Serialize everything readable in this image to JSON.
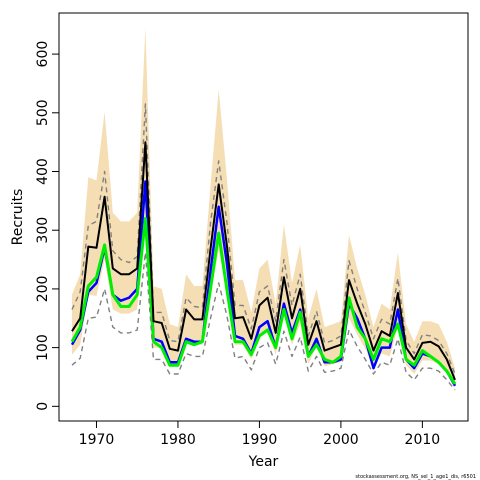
{
  "chart_data": {
    "type": "line",
    "title": "",
    "xlabel": "Year",
    "ylabel": "Recruits",
    "xlim": [
      1965.4,
      2015.6
    ],
    "ylim": [
      -25,
      670
    ],
    "x_ticks": [
      1970,
      1980,
      1990,
      2000,
      2010
    ],
    "y_ticks": [
      0,
      100,
      200,
      300,
      400,
      500,
      600
    ],
    "grid": false,
    "legend": "none",
    "credit": "stockassessment.org, NS_sel_1_age1_dis, r6501",
    "colors": {
      "band": "#f5deb3",
      "main": "#000000",
      "blue": "#0000ff",
      "green": "#00ee00",
      "dashed": "#808080"
    },
    "x": [
      1967,
      1968,
      1969,
      1970,
      1971,
      1972,
      1973,
      1974,
      1975,
      1976,
      1977,
      1978,
      1979,
      1980,
      1981,
      1982,
      1983,
      1984,
      1985,
      1986,
      1987,
      1988,
      1989,
      1990,
      1991,
      1992,
      1993,
      1994,
      1995,
      1996,
      1997,
      1998,
      1999,
      2000,
      2001,
      2002,
      2003,
      2004,
      2005,
      2006,
      2007,
      2008,
      2009,
      2010,
      2011,
      2012,
      2013,
      2014
    ],
    "series": [
      {
        "values": [
          128,
          150,
          272,
          270,
          357,
          235,
          225,
          225,
          235,
          450,
          145,
          142,
          98,
          95,
          165,
          148,
          148,
          268,
          378,
          275,
          150,
          152,
          115,
          172,
          185,
          125,
          220,
          150,
          200,
          105,
          145,
          95,
          100,
          105,
          215,
          175,
          140,
          95,
          128,
          120,
          193,
          100,
          80,
          108,
          110,
          102,
          80,
          45
        ]
      },
      {
        "values": [
          105,
          130,
          195,
          210,
          270,
          190,
          180,
          185,
          200,
          383,
          115,
          110,
          75,
          75,
          115,
          110,
          110,
          230,
          340,
          245,
          120,
          115,
          90,
          135,
          145,
          100,
          175,
          125,
          165,
          85,
          115,
          75,
          75,
          80,
          175,
          150,
          115,
          65,
          100,
          100,
          165,
          80,
          65,
          90,
          85,
          75,
          60,
          35
        ]
      },
      {
        "values": [
          110,
          135,
          205,
          220,
          275,
          190,
          170,
          170,
          190,
          320,
          110,
          100,
          70,
          70,
          110,
          105,
          110,
          200,
          295,
          200,
          110,
          110,
          88,
          120,
          130,
          100,
          165,
          115,
          160,
          85,
          105,
          80,
          75,
          85,
          185,
          135,
          115,
          80,
          115,
          110,
          140,
          80,
          70,
          95,
          85,
          75,
          60,
          38
        ]
      },
      {
        "values": [
          165,
          195,
          308,
          315,
          400,
          265,
          250,
          245,
          255,
          515,
          160,
          160,
          112,
          110,
          185,
          170,
          168,
          312,
          418,
          315,
          172,
          172,
          132,
          195,
          205,
          145,
          250,
          172,
          225,
          120,
          162,
          108,
          112,
          120,
          248,
          200,
          160,
          115,
          148,
          140,
          218,
          112,
          90,
          122,
          120,
          112,
          90,
          55
        ]
      },
      {
        "values": [
          70,
          82,
          150,
          152,
          200,
          135,
          125,
          125,
          130,
          262,
          80,
          80,
          55,
          55,
          90,
          85,
          85,
          150,
          210,
          155,
          82,
          85,
          62,
          100,
          108,
          72,
          128,
          85,
          118,
          60,
          85,
          58,
          60,
          65,
          130,
          102,
          80,
          55,
          75,
          70,
          115,
          58,
          45,
          65,
          65,
          60,
          45,
          28
        ]
      }
    ],
    "band_upper": [
      190,
      225,
      390,
      385,
      502,
      330,
      315,
      315,
      330,
      645,
      205,
      200,
      140,
      135,
      225,
      205,
      205,
      375,
      540,
      390,
      215,
      215,
      160,
      235,
      250,
      175,
      310,
      210,
      275,
      150,
      200,
      135,
      140,
      145,
      292,
      235,
      190,
      135,
      175,
      165,
      262,
      140,
      110,
      145,
      145,
      140,
      110,
      65
    ],
    "band_lower": [
      88,
      105,
      190,
      188,
      250,
      165,
      158,
      158,
      165,
      315,
      100,
      100,
      70,
      68,
      118,
      105,
      105,
      190,
      265,
      195,
      105,
      105,
      80,
      120,
      130,
      88,
      155,
      105,
      140,
      72,
      102,
      68,
      72,
      75,
      150,
      122,
      98,
      68,
      90,
      85,
      135,
      70,
      55,
      78,
      78,
      72,
      55,
      32
    ]
  }
}
